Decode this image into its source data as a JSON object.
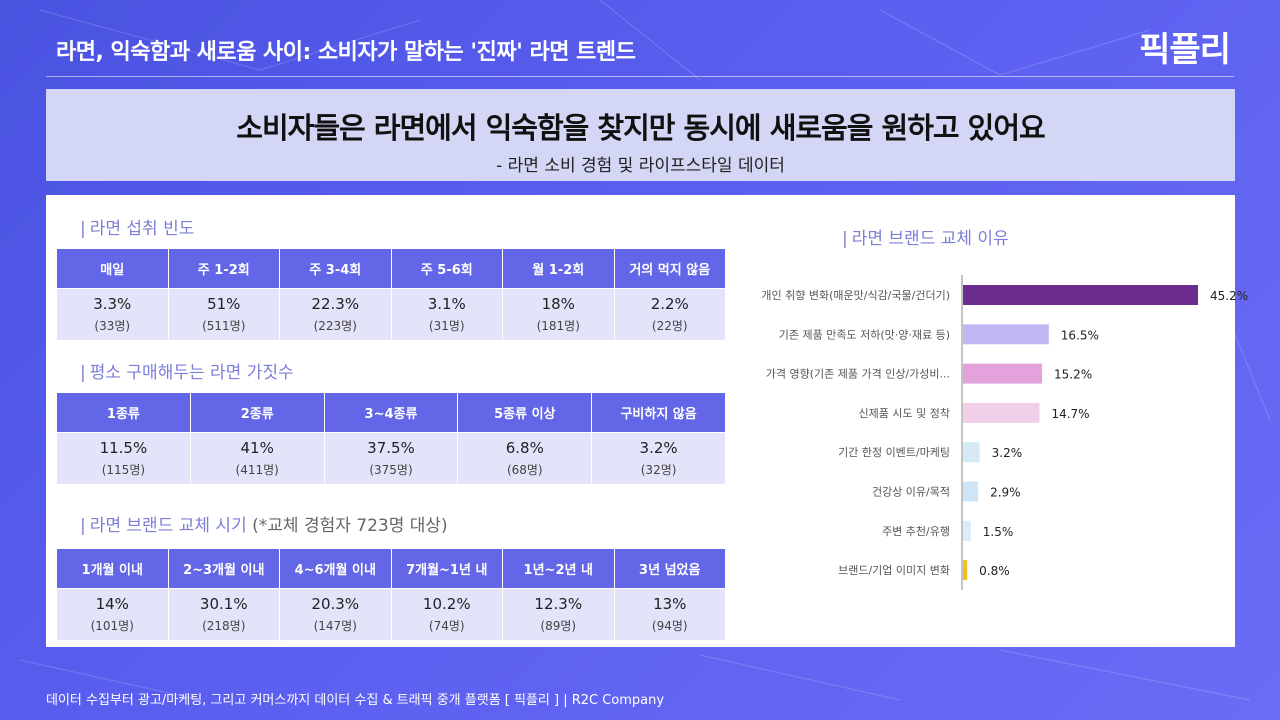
{
  "header": {
    "title": "라면, 익숙함과 새로움 사이: 소비자가 말하는 '진짜' 라면 트렌드",
    "logo": "픽플리"
  },
  "headline": {
    "main": "소비자들은 라면에서 익숙함을 찾지만 동시에 새로움을 원하고 있어요",
    "sub": "- 라면 소비 경험 및 라이프스타일 데이터"
  },
  "frequency": {
    "title": "라면 섭취 빈도",
    "columns": [
      "매일",
      "주 1-2회",
      "주 3-4회",
      "주 5-6회",
      "월 1-2회",
      "거의 먹지 않음"
    ],
    "pct": [
      "3.3%",
      "51%",
      "22.3%",
      "3.1%",
      "18%",
      "2.2%"
    ],
    "count": [
      "(33명)",
      "(511명)",
      "(223명)",
      "(31명)",
      "(181명)",
      "(22명)"
    ]
  },
  "varieties": {
    "title": "평소 구매해두는 라면 가짓수",
    "columns": [
      "1종류",
      "2종류",
      "3~4종류",
      "5종류 이상",
      "구비하지 않음"
    ],
    "pct": [
      "11.5%",
      "41%",
      "37.5%",
      "6.8%",
      "3.2%"
    ],
    "count": [
      "(115명)",
      "(411명)",
      "(375명)",
      "(68명)",
      "(32명)"
    ]
  },
  "switch_timing": {
    "title": "라면 브랜드 교체 시기",
    "note": "(*교체 경험자 723명 대상)",
    "columns": [
      "1개월 이내",
      "2~3개월 이내",
      "4~6개월 이내",
      "7개월~1년 내",
      "1년~2년 내",
      "3년 넘었음"
    ],
    "pct": [
      "14%",
      "30.1%",
      "20.3%",
      "10.2%",
      "12.3%",
      "13%"
    ],
    "count": [
      "(101명)",
      "(218명)",
      "(147명)",
      "(74명)",
      "(89명)",
      "(94명)"
    ]
  },
  "chart_data": {
    "type": "bar",
    "orientation": "horizontal",
    "title": "라면 브랜드 교체 이유",
    "categories": [
      "개인 취향 변화(매운맛/식감/국물/건더기)",
      "기존 제품 만족도 저하(맛·양·재료 등)",
      "가격 영향(기존 제품 가격 인상/가성비...",
      "신제품 시도 및 정착",
      "기간 한정 이벤트/마케팅",
      "건강상 이유/목적",
      "주변 추천/유행",
      "브랜드/기업 이미지 변화"
    ],
    "values": [
      45.2,
      16.5,
      15.2,
      14.7,
      3.2,
      2.9,
      1.5,
      0.8
    ],
    "value_labels": [
      "45.2%",
      "16.5%",
      "15.2%",
      "14.7%",
      "3.2%",
      "2.9%",
      "1.5%",
      "0.8%"
    ],
    "colors": [
      "#6b2d8e",
      "#c0b8f4",
      "#e4a2dc",
      "#f2cfe9",
      "#d5e9f7",
      "#cfe4f5",
      "#dcecf8",
      "#f0c020"
    ],
    "xlim": [
      0,
      50
    ]
  },
  "footer": {
    "text": "데이터 수집부터 광고/마케팅, 그리고 커머스까지 데이터 수집 & 트래픽 중개 플랫폼 [ 픽플리 ]  |  R2C Company"
  }
}
